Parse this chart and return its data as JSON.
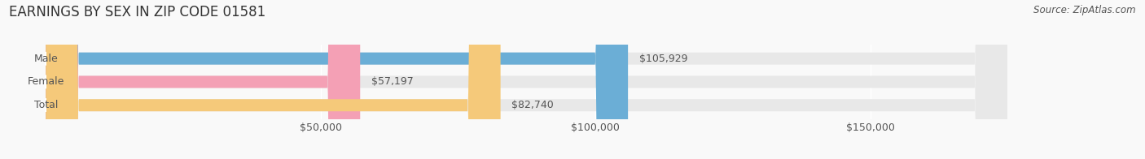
{
  "title": "EARNINGS BY SEX IN ZIP CODE 01581",
  "source": "Source: ZipAtlas.com",
  "categories": [
    "Male",
    "Female",
    "Total"
  ],
  "values": [
    105929,
    57197,
    82740
  ],
  "bar_colors": [
    "#6baed6",
    "#f4a0b5",
    "#f5c97a"
  ],
  "bar_bg_color": "#e8e8e8",
  "bar_height": 0.52,
  "xmin": 0,
  "xmax": 175000,
  "xticks": [
    50000,
    100000,
    150000
  ],
  "xtick_labels": [
    "$50,000",
    "$100,000",
    "$150,000"
  ],
  "title_fontsize": 12,
  "label_fontsize": 9,
  "value_fontsize": 9,
  "source_fontsize": 8.5,
  "bg_color": "#f9f9f9",
  "text_color": "#555555",
  "title_color": "#333333"
}
